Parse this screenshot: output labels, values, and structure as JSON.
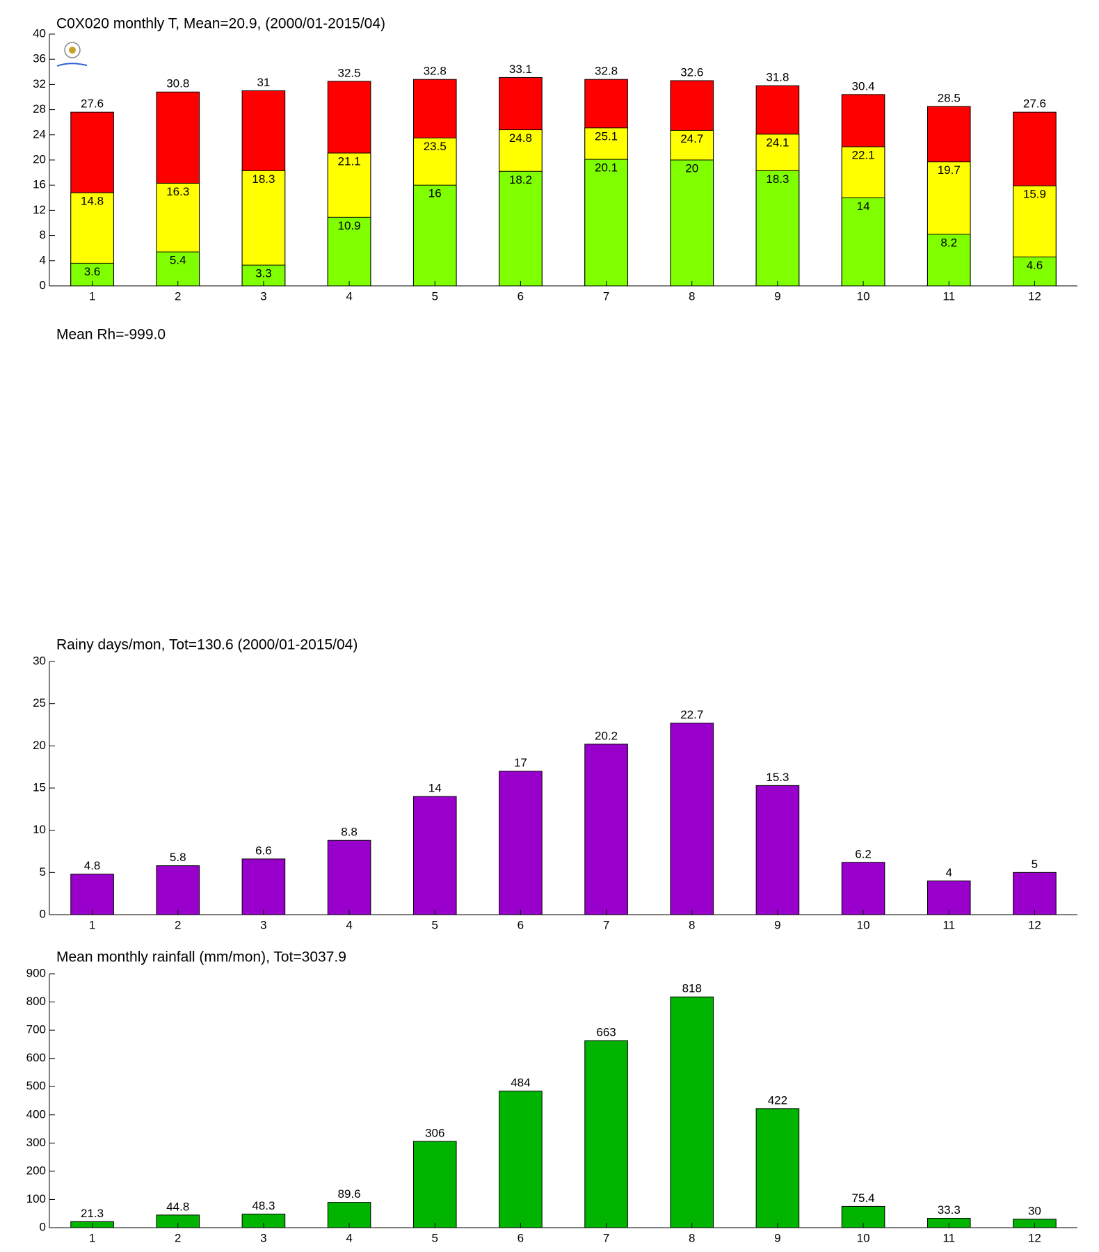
{
  "chart_data": [
    {
      "type": "bar",
      "title": "C0X020 monthly T, Mean=20.9, (2000/01-2015/04)",
      "categories": [
        "1",
        "2",
        "3",
        "4",
        "5",
        "6",
        "7",
        "8",
        "9",
        "10",
        "11",
        "12"
      ],
      "series": [
        {
          "color": "#ff0000",
          "values": [
            27.6,
            30.8,
            31,
            32.5,
            32.8,
            33.1,
            32.8,
            32.6,
            31.8,
            30.4,
            28.5,
            27.6
          ]
        },
        {
          "color": "#ffff00",
          "values": [
            14.8,
            16.3,
            18.3,
            21.1,
            23.5,
            24.8,
            25.1,
            24.7,
            24.1,
            22.1,
            19.7,
            15.9
          ]
        },
        {
          "color": "#80ff00",
          "values": [
            3.6,
            5.4,
            3.3,
            10.9,
            16,
            18.2,
            20.1,
            20,
            18.3,
            14,
            8.2,
            4.6
          ]
        }
      ],
      "ylim": [
        0,
        40
      ],
      "yticks": [
        0,
        4,
        8,
        12,
        16,
        20,
        24,
        28,
        32,
        36,
        40
      ]
    },
    {
      "type": "bar",
      "title": "Mean Rh=-999.0"
    },
    {
      "type": "bar",
      "title": "Rainy days/mon, Tot=130.6 (2000/01-2015/04)",
      "categories": [
        "1",
        "2",
        "3",
        "4",
        "5",
        "6",
        "7",
        "8",
        "9",
        "10",
        "11",
        "12"
      ],
      "values": [
        4.8,
        5.8,
        6.6,
        8.8,
        14,
        17,
        20.2,
        22.7,
        15.3,
        6.2,
        4,
        5
      ],
      "color": "#9900cc",
      "ylim": [
        0,
        30
      ],
      "yticks": [
        0,
        5,
        10,
        15,
        20,
        25,
        30
      ]
    },
    {
      "type": "bar",
      "title": "Mean monthly rainfall (mm/mon), Tot=3037.9",
      "categories": [
        "1",
        "2",
        "3",
        "4",
        "5",
        "6",
        "7",
        "8",
        "9",
        "10",
        "11",
        "12"
      ],
      "values": [
        21.3,
        44.8,
        48.3,
        89.6,
        306,
        484,
        663,
        818,
        422,
        75.4,
        33.3,
        30
      ],
      "color": "#00b400",
      "ylim": [
        0,
        900
      ],
      "yticks": [
        0,
        100,
        200,
        300,
        400,
        500,
        600,
        700,
        800,
        900
      ]
    }
  ]
}
